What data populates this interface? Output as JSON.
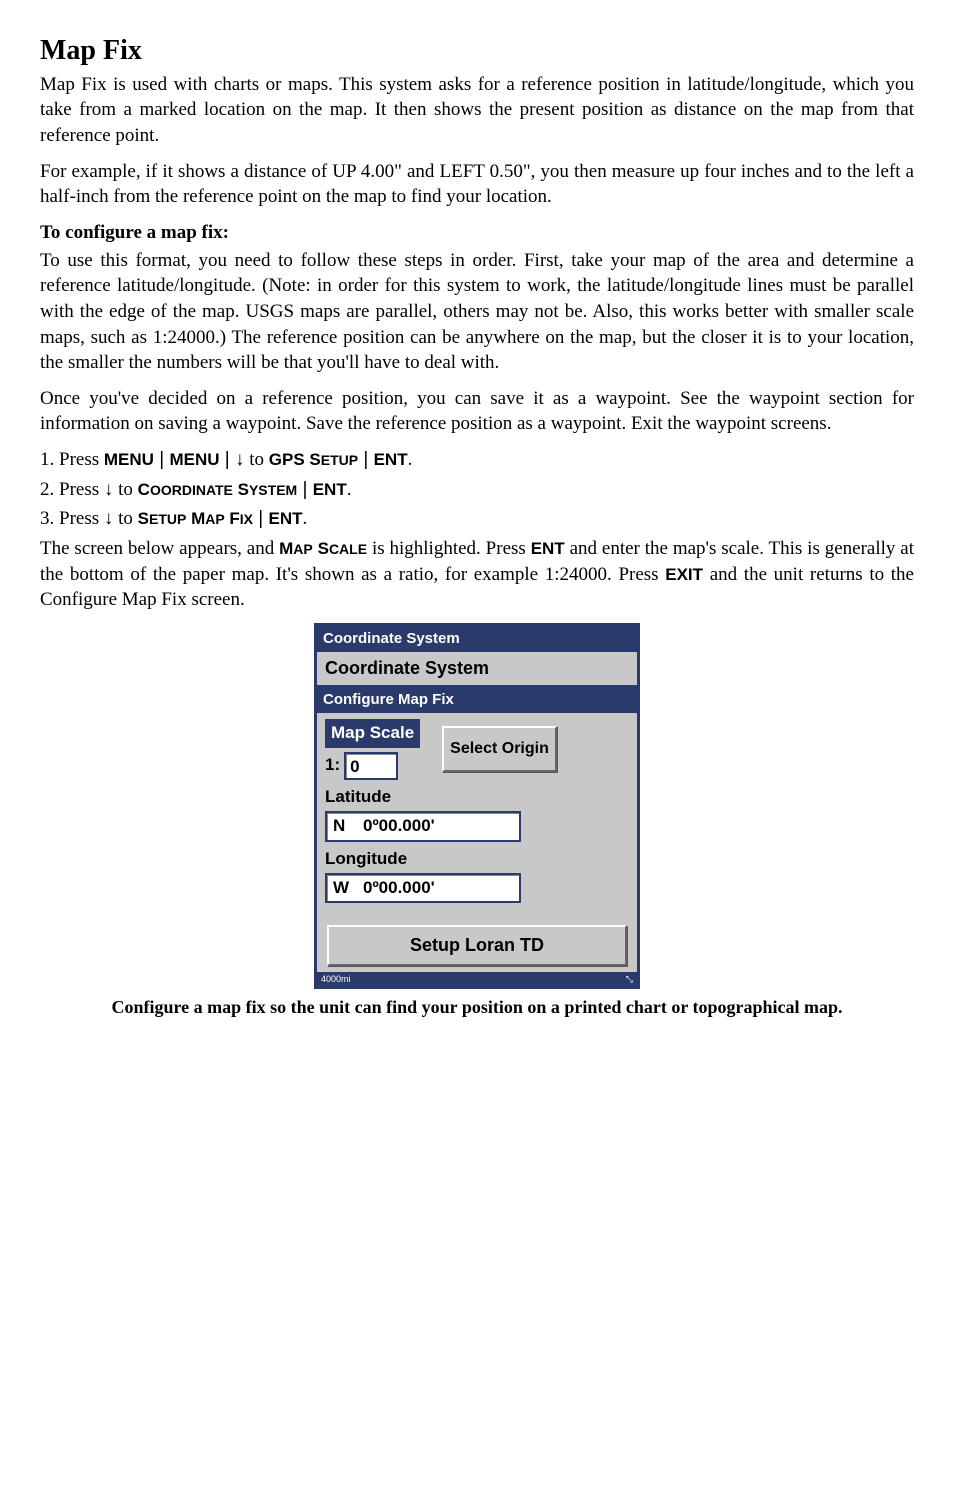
{
  "title": "Map Fix",
  "p1": "Map Fix is used with charts or maps. This system asks for a reference position in latitude/longitude, which you take from a marked location on the map. It then shows the present position as distance on the map from that reference point.",
  "p2": "For example, if it shows a distance of UP 4.00\" and LEFT 0.50\", you then measure up four inches and to the left a half-inch from the reference point on the map to find your location.",
  "sub1": "To configure a map fix:",
  "p3": "To use this format, you need to follow these steps in order. First, take your map of the area and determine a reference latitude/longitude. (Note: in order for this system to work, the latitude/longitude lines must be parallel with the edge of the map. USGS maps are parallel, others may not be. Also, this works better with smaller scale maps, such as 1:24000.) The reference position can be anywhere on the map, but the closer it is to your location, the smaller the numbers will be that you'll have to deal with.",
  "p4": "Once you've decided on a reference position, you can save it as a waypoint. See the waypoint section for information on saving a waypoint. Save the reference position as a waypoint. Exit the waypoint screens.",
  "step1": {
    "prefix": "1. Press ",
    "keys": [
      "MENU",
      "MENU"
    ],
    "arrow": "↓",
    "smallcaps": "GPS Setup",
    "end": "ENT"
  },
  "step2": {
    "prefix": "2. Press ",
    "arrow": "↓",
    "smallcaps": "Coordinate System",
    "end": "ENT"
  },
  "step3": {
    "prefix": "3. Press ",
    "arrow": "↓",
    "smallcaps": "Setup Map Fix",
    "end": "ENT"
  },
  "p5a": "The screen below appears, and ",
  "p5key1": "Map Scale",
  "p5b": " is highlighted. Press ",
  "p5key2": "ENT",
  "p5c": " and enter the map's scale. This is generally at the bottom of the paper map. It's shown as a ratio, for example 1:24000. Press ",
  "p5key3": "EXIT",
  "p5d": " and the unit returns to the Configure Map Fix screen.",
  "screenshot": {
    "header1": "Coordinate System",
    "header2": "Coordinate System",
    "configHeader": "Configure Map Fix",
    "mapScaleLabel": "Map Scale",
    "ratioPrefix": "1:",
    "ratioValue": "0",
    "selectOrigin": "Select Origin",
    "latLabel": "Latitude",
    "latDir": "N",
    "latVal": "0º00.000'",
    "lonLabel": "Longitude",
    "lonDir": "W",
    "lonVal": "0º00.000'",
    "setupLoran": "Setup Loran TD",
    "footerLeft": "4000mi"
  },
  "caption": "Configure a map fix so the unit can find your position on a printed chart or topographical map."
}
